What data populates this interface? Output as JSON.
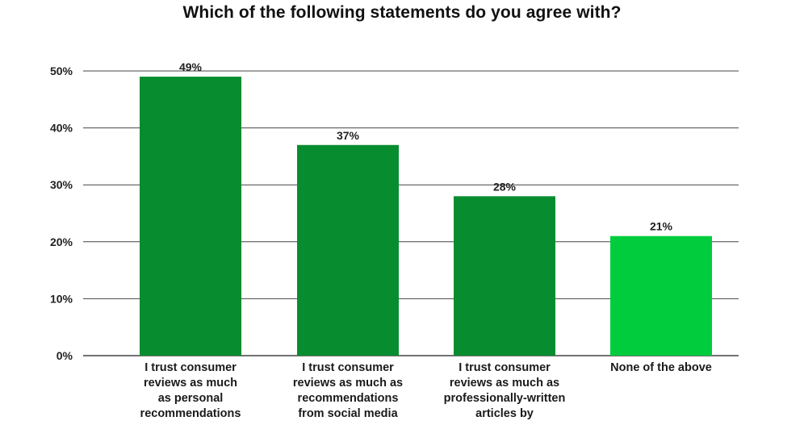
{
  "chart_data": {
    "type": "bar",
    "title": "Which of the following statements do you agree with?",
    "categories": [
      "I trust consumer\nreviews as much\nas personal\nrecommendations",
      "I trust consumer\nreviews as much as\nrecommendations\nfrom social media",
      "I trust consumer\nreviews as much as\nprofessionally-written\narticles by",
      "None of the above"
    ],
    "values": [
      49,
      37,
      28,
      21
    ],
    "value_labels": [
      "49%",
      "37%",
      "28%",
      "21%"
    ],
    "y_ticks": [
      "0%",
      "10%",
      "20%",
      "30%",
      "40%",
      "50%"
    ],
    "ylim": [
      0,
      50
    ],
    "grid": true,
    "colors": [
      "#078d2f",
      "#078d2f",
      "#078d2f",
      "#00cc3d"
    ],
    "grid_color": "#444444"
  }
}
